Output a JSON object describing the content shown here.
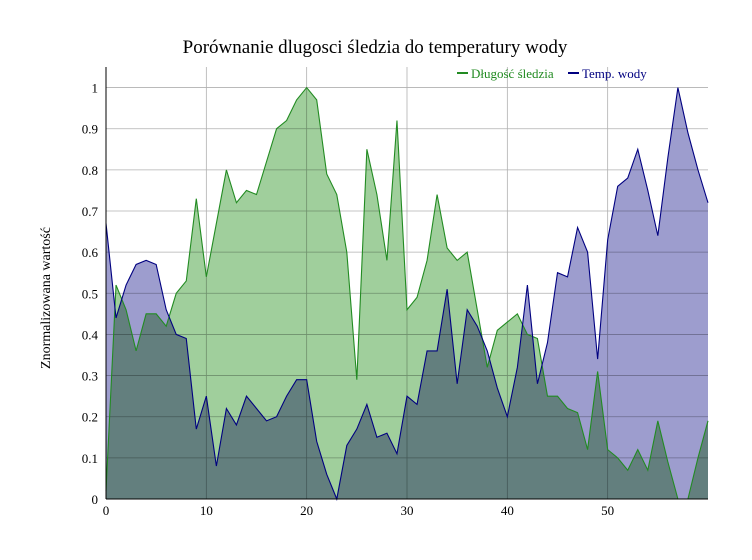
{
  "chart_data": {
    "type": "area",
    "title": "Porównanie dlugosci śledzia do temperatury wody",
    "xlabel": "",
    "ylabel": "Znormalizowana wartość",
    "xlim": [
      0,
      60
    ],
    "ylim": [
      0,
      1.05
    ],
    "x_ticks": [
      0,
      10,
      20,
      30,
      40,
      50
    ],
    "y_ticks": [
      0,
      0.1,
      0.2,
      0.3,
      0.4,
      0.5,
      0.6,
      0.7,
      0.8,
      0.9,
      1
    ],
    "y_tick_labels": [
      "0",
      "0.1",
      "0.2",
      "0.3",
      "0.4",
      "0.5",
      "0.6",
      "0.7",
      "0.8",
      "0.9",
      "1"
    ],
    "grid": true,
    "legend_position": "top-right",
    "x": [
      0,
      1,
      2,
      3,
      4,
      5,
      6,
      7,
      8,
      9,
      10,
      11,
      12,
      13,
      14,
      15,
      16,
      17,
      18,
      19,
      20,
      21,
      22,
      23,
      24,
      25,
      26,
      27,
      28,
      29,
      30,
      31,
      32,
      33,
      34,
      35,
      36,
      37,
      38,
      39,
      40,
      41,
      42,
      43,
      44,
      45,
      46,
      47,
      48,
      49,
      50,
      51,
      52,
      53,
      54,
      55,
      56,
      57,
      58,
      59,
      60
    ],
    "series": [
      {
        "name": "Długość śledzia",
        "color": "#228b22",
        "fill": "#8fc78b",
        "values": [
          0.02,
          0.52,
          0.46,
          0.36,
          0.45,
          0.45,
          0.42,
          0.5,
          0.53,
          0.73,
          0.54,
          0.67,
          0.8,
          0.72,
          0.75,
          0.74,
          0.82,
          0.9,
          0.92,
          0.97,
          1.0,
          0.97,
          0.79,
          0.74,
          0.6,
          0.29,
          0.85,
          0.74,
          0.58,
          0.92,
          0.46,
          0.49,
          0.58,
          0.74,
          0.61,
          0.58,
          0.6,
          0.46,
          0.32,
          0.41,
          0.43,
          0.45,
          0.4,
          0.39,
          0.25,
          0.25,
          0.22,
          0.21,
          0.12,
          0.31,
          0.12,
          0.1,
          0.07,
          0.12,
          0.07,
          0.19,
          0.09,
          0.0,
          0.0,
          0.1,
          0.19
        ]
      },
      {
        "name": "Temp. wody",
        "color": "#000080",
        "fill": "#8c8cc6",
        "values": [
          0.67,
          0.44,
          0.52,
          0.57,
          0.58,
          0.57,
          0.46,
          0.4,
          0.39,
          0.17,
          0.25,
          0.08,
          0.22,
          0.18,
          0.25,
          0.22,
          0.19,
          0.2,
          0.25,
          0.29,
          0.29,
          0.14,
          0.06,
          -0.01,
          0.13,
          0.17,
          0.23,
          0.15,
          0.16,
          0.11,
          0.25,
          0.23,
          0.36,
          0.36,
          0.51,
          0.28,
          0.46,
          0.42,
          0.36,
          0.27,
          0.2,
          0.32,
          0.52,
          0.28,
          0.38,
          0.55,
          0.54,
          0.66,
          0.6,
          0.34,
          0.63,
          0.76,
          0.78,
          0.85,
          0.75,
          0.64,
          0.83,
          1.0,
          0.89,
          0.8,
          0.72
        ]
      }
    ]
  }
}
